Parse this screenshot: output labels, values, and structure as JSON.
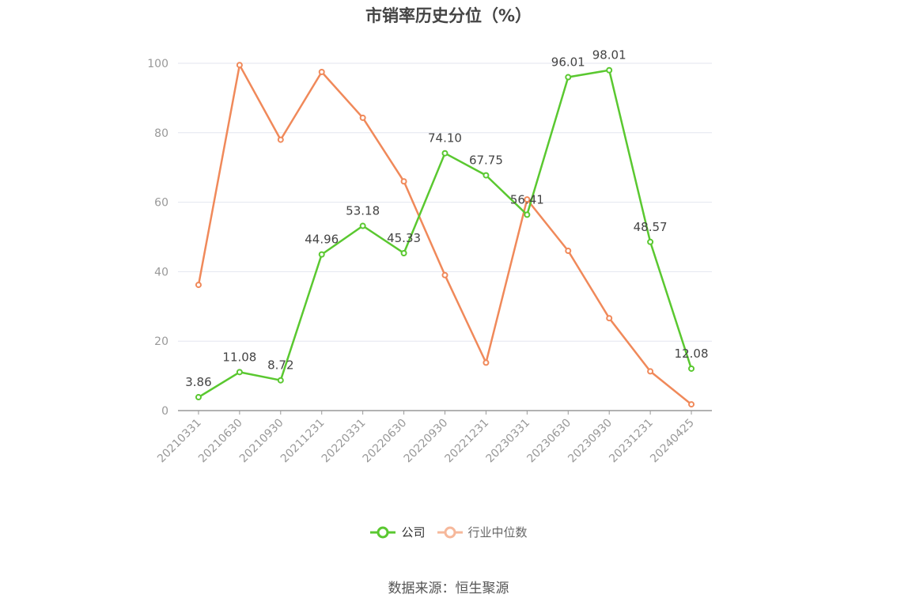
{
  "chart_data": {
    "type": "line",
    "title": "市销率历史分位（%）",
    "categories": [
      "20210331",
      "20210630",
      "20210930",
      "20211231",
      "20220331",
      "20220630",
      "20220930",
      "20221231",
      "20230331",
      "20230630",
      "20230930",
      "20231231",
      "20240425"
    ],
    "series": [
      {
        "name": "公司",
        "color": "#5ac830",
        "values": [
          3.86,
          11.08,
          8.72,
          44.96,
          53.18,
          45.33,
          74.1,
          67.75,
          56.41,
          96.01,
          98.01,
          48.57,
          12.08
        ],
        "labels": [
          "3.86",
          "11.08",
          "8.72",
          "44.96",
          "53.18",
          "45.33",
          "74.10",
          "67.75",
          "56.41",
          "96.01",
          "98.01",
          "48.57",
          "12.08"
        ]
      },
      {
        "name": "行业中位数",
        "color": "#f0895a",
        "values": [
          36.2,
          99.5,
          78.0,
          97.5,
          84.3,
          66.0,
          39.0,
          13.8,
          60.8,
          46.0,
          26.6,
          11.3,
          1.8
        ]
      }
    ],
    "yticks": [
      0,
      20,
      40,
      60,
      80,
      100
    ],
    "ylim": [
      0,
      100
    ],
    "grid": true,
    "legend_position": "bottom"
  },
  "source": "数据来源：恒生聚源"
}
